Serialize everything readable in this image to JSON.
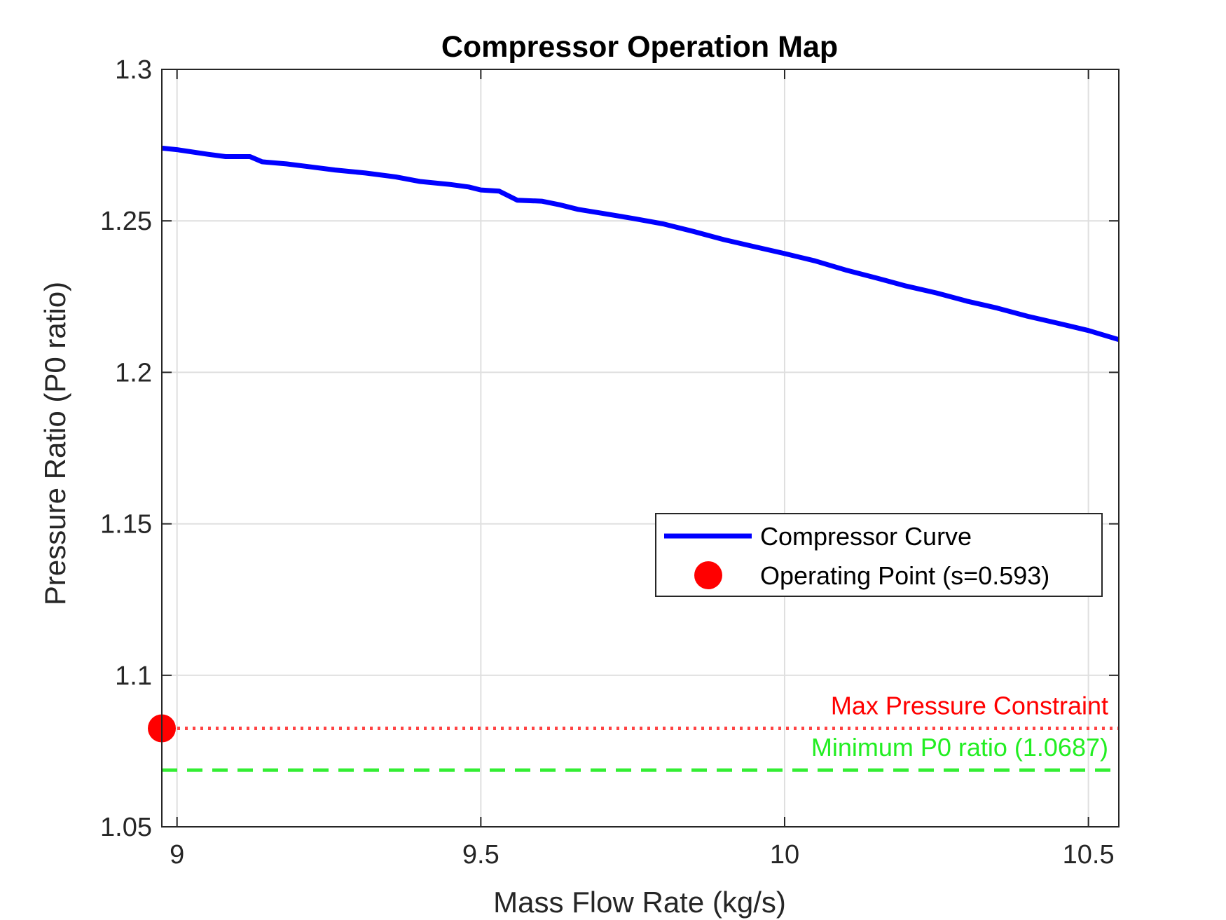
{
  "chart_data": {
    "type": "line",
    "title": "Compressor Operation Map",
    "xlabel": "Mass Flow Rate (kg/s)",
    "ylabel": "Pressure Ratio (P0 ratio)",
    "xlim": [
      8.975,
      10.55
    ],
    "ylim": [
      1.05,
      1.3
    ],
    "xticks": [
      9,
      9.5,
      10,
      10.5
    ],
    "xtick_labels": [
      "9",
      "9.5",
      "10",
      "10.5"
    ],
    "yticks": [
      1.05,
      1.1,
      1.15,
      1.2,
      1.25,
      1.3
    ],
    "ytick_labels": [
      "1.05",
      "1.1",
      "1.15",
      "1.2",
      "1.25",
      "1.3"
    ],
    "grid": true,
    "legend_position": "center-right",
    "series": [
      {
        "name": "Compressor Curve",
        "color": "#0000ff",
        "style": "solid",
        "x": [
          8.975,
          9.0,
          9.05,
          9.08,
          9.12,
          9.14,
          9.18,
          9.22,
          9.26,
          9.31,
          9.36,
          9.4,
          9.45,
          9.48,
          9.5,
          9.53,
          9.56,
          9.6,
          9.63,
          9.66,
          9.7,
          9.75,
          9.8,
          9.85,
          9.9,
          9.95,
          10.0,
          10.05,
          10.1,
          10.15,
          10.2,
          10.25,
          10.3,
          10.35,
          10.4,
          10.45,
          10.5,
          10.55
        ],
        "y": [
          1.274,
          1.2735,
          1.272,
          1.2712,
          1.2712,
          1.2695,
          1.2688,
          1.2678,
          1.2668,
          1.2658,
          1.2645,
          1.263,
          1.262,
          1.2612,
          1.2602,
          1.2598,
          1.2568,
          1.2565,
          1.2553,
          1.2538,
          1.2525,
          1.2508,
          1.249,
          1.2465,
          1.2438,
          1.2415,
          1.2392,
          1.2368,
          1.2338,
          1.2312,
          1.2285,
          1.2262,
          1.2235,
          1.2212,
          1.2185,
          1.2162,
          1.2138,
          1.2108
        ]
      }
    ],
    "operating_point": {
      "name": "Operating Point (s=0.593)",
      "x": 8.975,
      "y": 1.0825,
      "color": "#ff0000"
    },
    "reference_lines": [
      {
        "label": "Max Pressure Constraint",
        "y": 1.0825,
        "color": "#ff4444",
        "style": "dotted"
      },
      {
        "label": "Minimum P0 ratio (1.0687)",
        "y": 1.0687,
        "color": "#33ee33",
        "style": "dashed"
      }
    ]
  }
}
